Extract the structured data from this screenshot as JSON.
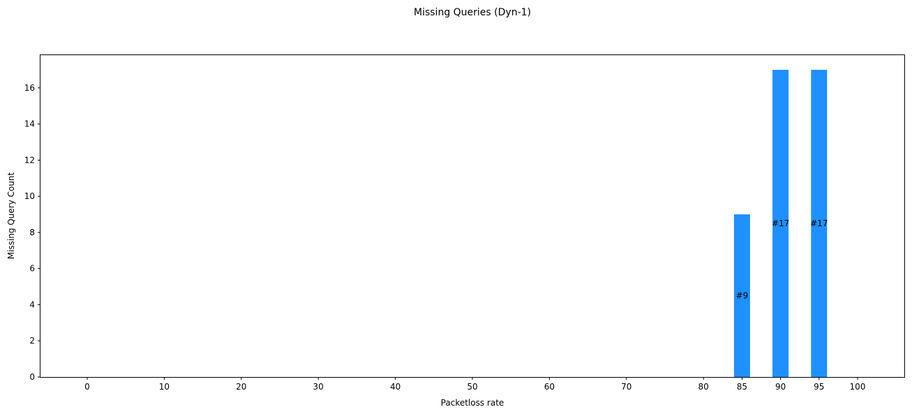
{
  "chart_data": {
    "type": "bar",
    "title": "Missing Queries (Dyn-1)",
    "xlabel": "Packetloss rate",
    "ylabel": "Missing Query Count",
    "x_ticks": [
      "0",
      "10",
      "20",
      "30",
      "40",
      "50",
      "60",
      "70",
      "80",
      "85",
      "90",
      "95",
      "100"
    ],
    "categories": [
      85,
      90,
      95
    ],
    "values": [
      9,
      17,
      17
    ],
    "bar_labels": [
      "#9",
      "#17",
      "#17"
    ],
    "y_ticks": [
      "0",
      "2",
      "4",
      "6",
      "8",
      "10",
      "12",
      "14",
      "16"
    ],
    "ylim": [
      0,
      17.85
    ],
    "bar_color": "#1e90ff",
    "grid": false
  }
}
